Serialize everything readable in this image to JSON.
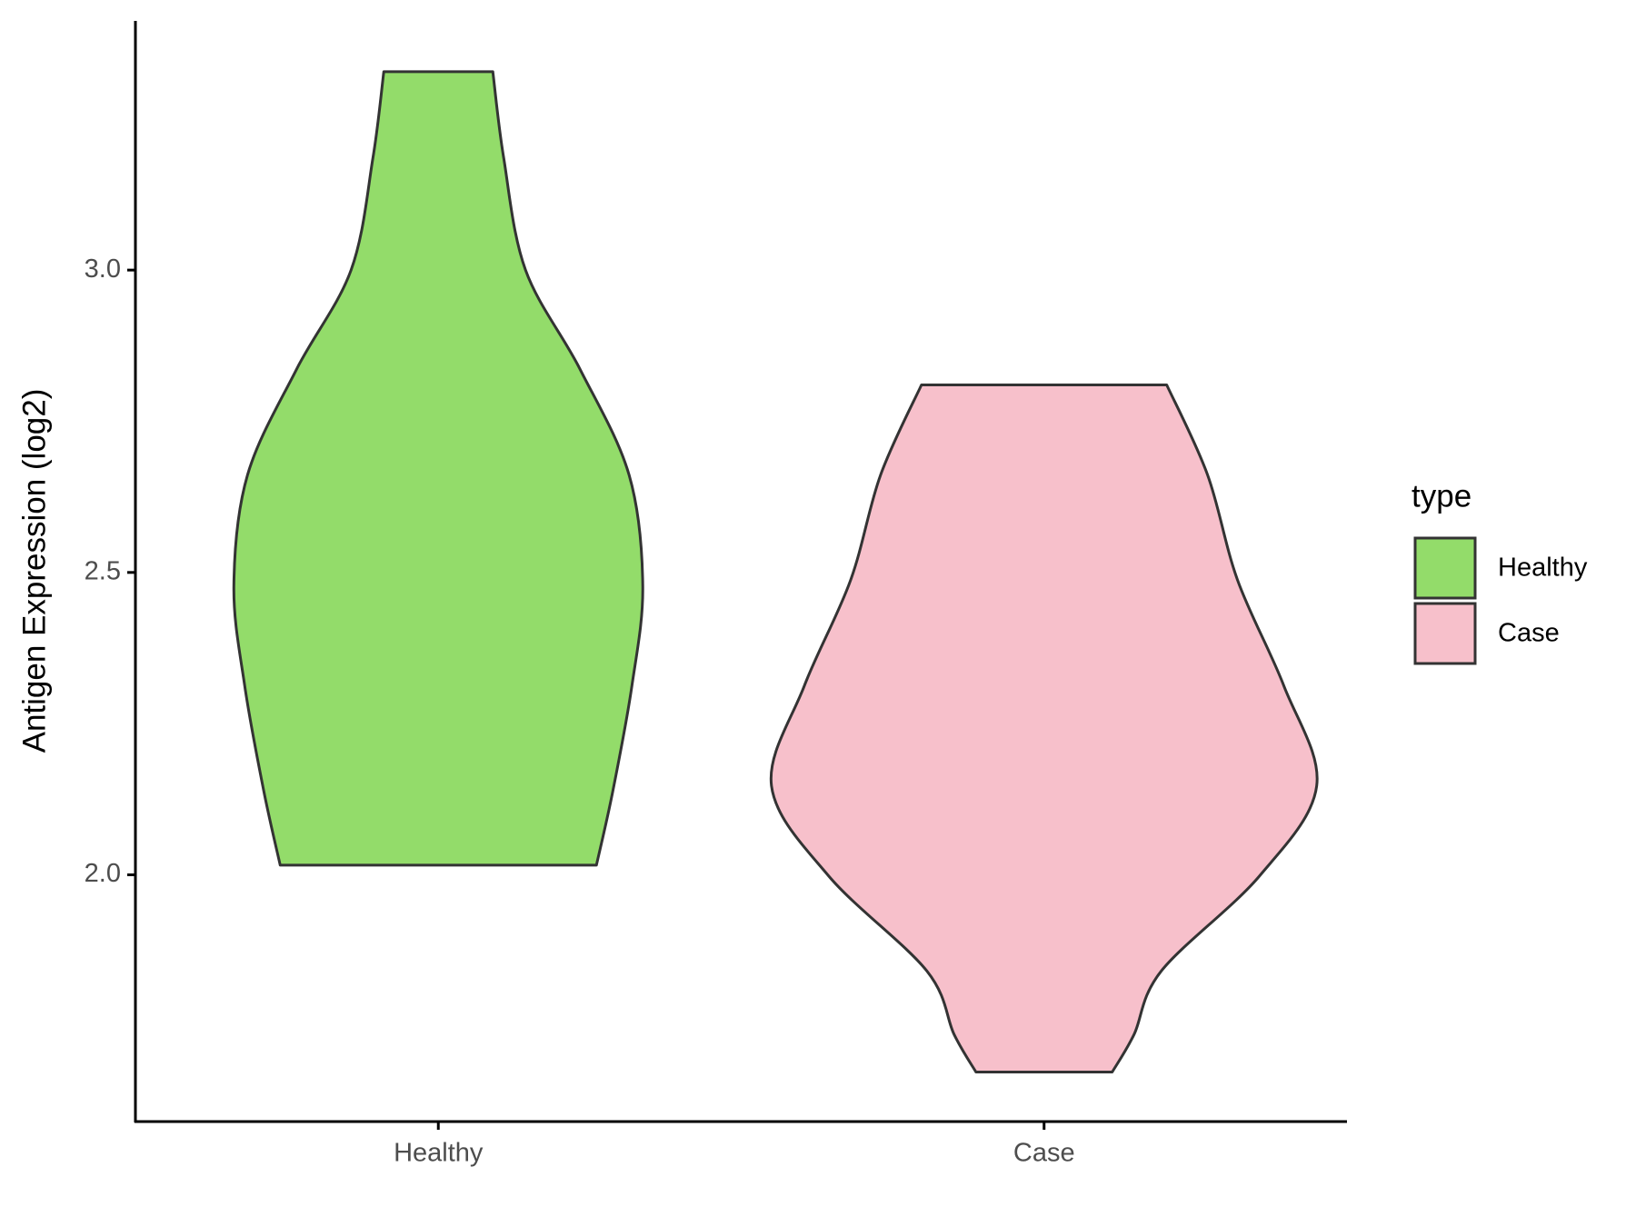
{
  "chart_data": {
    "type": "violin",
    "y_label": "Antigen Expression (log2)",
    "categories": [
      "Healthy",
      "Case"
    ],
    "legend_title": "type",
    "legend": "right",
    "ylim": [
      1.592,
      3.412
    ],
    "yticks": [
      {
        "value": 2,
        "label": "2.0"
      },
      2.5,
      {
        "value": 3,
        "label": "3.0"
      }
    ],
    "series": [
      {
        "name": "Healthy",
        "color": "#93dc6a",
        "y": [
          3.328,
          3.185,
          3.0,
          2.836,
          2.661,
          2.478,
          2.312,
          2.138,
          2.016
        ],
        "density": [
          0.2,
          0.24,
          0.32,
          0.52,
          0.7,
          0.75,
          0.71,
          0.64,
          0.58
        ]
      },
      {
        "name": "Case",
        "color": "#f7c0cb",
        "y": [
          2.81,
          2.661,
          2.487,
          2.312,
          2.147,
          1.998,
          1.841,
          1.736,
          1.674
        ],
        "density": [
          0.45,
          0.6,
          0.71,
          0.88,
          1.0,
          0.79,
          0.43,
          0.33,
          0.25
        ]
      }
    ]
  }
}
